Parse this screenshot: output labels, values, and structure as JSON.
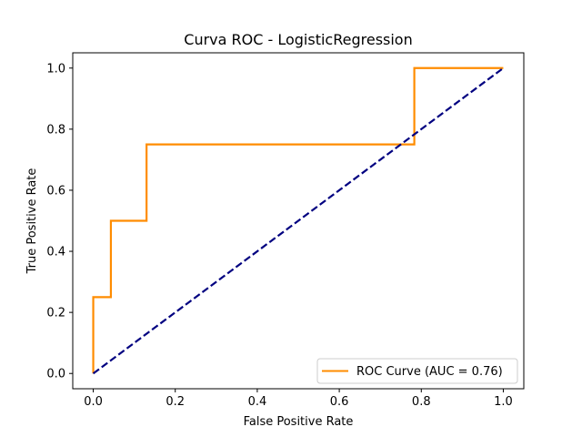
{
  "chart_data": {
    "type": "line",
    "title": "Curva ROC - LogisticRegression",
    "xlabel": "False Positive Rate",
    "ylabel": "True Positive Rate",
    "xlim": [
      -0.05,
      1.05
    ],
    "ylim": [
      -0.05,
      1.05
    ],
    "xticks": [
      0.0,
      0.2,
      0.4,
      0.6,
      0.8,
      1.0
    ],
    "yticks": [
      0.0,
      0.2,
      0.4,
      0.6,
      0.8,
      1.0
    ],
    "xtick_labels": [
      "0.0",
      "0.2",
      "0.4",
      "0.6",
      "0.8",
      "1.0"
    ],
    "ytick_labels": [
      "0.0",
      "0.2",
      "0.4",
      "0.6",
      "0.8",
      "1.0"
    ],
    "grid": false,
    "legend_position": "lower-right",
    "series": [
      {
        "name": "ROC Curve (AUC = 0.76)",
        "color": "#ff8c00",
        "style": "solid",
        "x": [
          0.0,
          0.0,
          0.043,
          0.043,
          0.13,
          0.13,
          0.783,
          0.783,
          1.0
        ],
        "y": [
          0.0,
          0.25,
          0.25,
          0.5,
          0.5,
          0.75,
          0.75,
          1.0,
          1.0
        ]
      },
      {
        "color": "#000080",
        "style": "dashed",
        "x": [
          0.0,
          1.0
        ],
        "y": [
          0.0,
          1.0
        ]
      }
    ]
  }
}
